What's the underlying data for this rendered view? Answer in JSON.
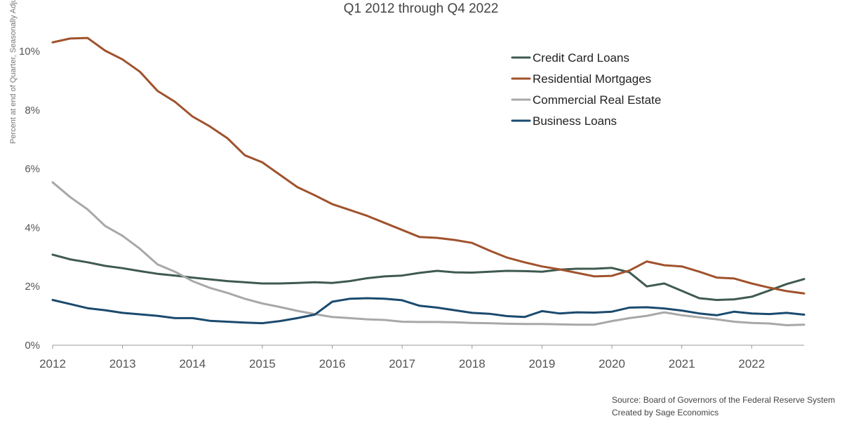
{
  "chart_data": {
    "type": "line",
    "title": "",
    "subtitle": "Q1 2012 through Q4 2022",
    "xlabel": "",
    "ylabel": "Percent at end of Quarter, Seasonally Adjusted",
    "xlim": [
      2012.0,
      2022.75
    ],
    "ylim": [
      0,
      10.5
    ],
    "yticks": [
      0,
      2,
      4,
      6,
      8,
      10
    ],
    "ytick_labels": [
      "0%",
      "2%",
      "4%",
      "6%",
      "8%",
      "10%"
    ],
    "xticks": [
      2012,
      2013,
      2014,
      2015,
      2016,
      2017,
      2018,
      2019,
      2020,
      2021,
      2022
    ],
    "xtick_labels": [
      "2012",
      "2013",
      "2014",
      "2015",
      "2016",
      "2017",
      "2018",
      "2019",
      "2020",
      "2021",
      "2022"
    ],
    "grid": false,
    "legend_position": "top-right",
    "x": [
      2012.0,
      2012.25,
      2012.5,
      2012.75,
      2013.0,
      2013.25,
      2013.5,
      2013.75,
      2014.0,
      2014.25,
      2014.5,
      2014.75,
      2015.0,
      2015.25,
      2015.5,
      2015.75,
      2016.0,
      2016.25,
      2016.5,
      2016.75,
      2017.0,
      2017.25,
      2017.5,
      2017.75,
      2018.0,
      2018.25,
      2018.5,
      2018.75,
      2019.0,
      2019.25,
      2019.5,
      2019.75,
      2020.0,
      2020.25,
      2020.5,
      2020.75,
      2021.0,
      2021.25,
      2021.5,
      2021.75,
      2022.0,
      2022.25,
      2022.5,
      2022.75
    ],
    "series": [
      {
        "name": "Credit Card Loans",
        "color": "#3f5a4f",
        "values": [
          3.08,
          2.92,
          2.82,
          2.7,
          2.62,
          2.52,
          2.43,
          2.37,
          2.3,
          2.24,
          2.18,
          2.14,
          2.1,
          2.1,
          2.12,
          2.14,
          2.12,
          2.18,
          2.28,
          2.34,
          2.37,
          2.46,
          2.53,
          2.48,
          2.47,
          2.5,
          2.53,
          2.52,
          2.5,
          2.57,
          2.6,
          2.6,
          2.63,
          2.48,
          2.0,
          2.1,
          1.85,
          1.6,
          1.54,
          1.56,
          1.65,
          1.86,
          2.08,
          2.25
        ]
      },
      {
        "name": "Residential Mortgages",
        "color": "#a0522d",
        "values": [
          10.3,
          10.43,
          10.45,
          10.02,
          9.72,
          9.3,
          8.65,
          8.28,
          7.78,
          7.44,
          7.04,
          6.46,
          6.22,
          5.8,
          5.38,
          5.1,
          4.8,
          4.6,
          4.4,
          4.16,
          3.92,
          3.68,
          3.65,
          3.58,
          3.48,
          3.22,
          2.98,
          2.82,
          2.68,
          2.58,
          2.46,
          2.34,
          2.36,
          2.54,
          2.85,
          2.72,
          2.68,
          2.5,
          2.3,
          2.27,
          2.1,
          1.96,
          1.84,
          1.76
        ]
      },
      {
        "name": "Commercial Real Estate",
        "color": "#a8a8a8",
        "values": [
          5.54,
          5.04,
          4.62,
          4.06,
          3.72,
          3.28,
          2.75,
          2.5,
          2.18,
          1.95,
          1.78,
          1.58,
          1.42,
          1.3,
          1.17,
          1.06,
          0.96,
          0.92,
          0.88,
          0.86,
          0.8,
          0.79,
          0.79,
          0.78,
          0.76,
          0.75,
          0.73,
          0.72,
          0.72,
          0.71,
          0.7,
          0.7,
          0.82,
          0.92,
          1.0,
          1.12,
          1.02,
          0.95,
          0.88,
          0.8,
          0.76,
          0.74,
          0.68,
          0.7
        ]
      },
      {
        "name": "Business Loans",
        "color": "#1a4a6e",
        "values": [
          1.54,
          1.4,
          1.26,
          1.19,
          1.1,
          1.05,
          1.0,
          0.92,
          0.92,
          0.83,
          0.8,
          0.77,
          0.75,
          0.82,
          0.92,
          1.04,
          1.48,
          1.58,
          1.6,
          1.58,
          1.53,
          1.34,
          1.28,
          1.19,
          1.1,
          1.07,
          0.99,
          0.96,
          1.16,
          1.08,
          1.12,
          1.11,
          1.14,
          1.28,
          1.29,
          1.25,
          1.18,
          1.08,
          1.02,
          1.14,
          1.08,
          1.06,
          1.1,
          1.04
        ]
      }
    ],
    "source_lines": [
      "Source: Board of Governors of the Federal Reserve System",
      "Created by Sage Economics"
    ]
  }
}
